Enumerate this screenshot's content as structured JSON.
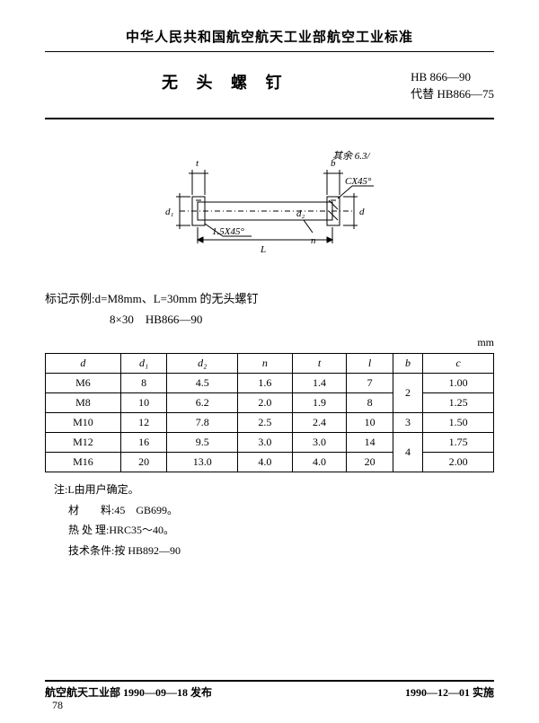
{
  "header": {
    "org": "中华人民共和国航空航天工业部航空工业标准",
    "title": "无 头 螺 钉",
    "std_code": "HB 866—90",
    "replaces_label": "代替",
    "replaces_code": "HB866—75"
  },
  "diagram": {
    "labels": {
      "t": "t",
      "b": "b",
      "d1": "d₁",
      "d2": "d₂",
      "d": "d",
      "L": "L",
      "n": "n",
      "chamfer_left": "1.5X45°",
      "chamfer_right": "CX45°",
      "surface": "其余 6.3/"
    },
    "colors": {
      "stroke": "#000000",
      "fill": "#ffffff"
    }
  },
  "example": {
    "line1": "标记示例:d=M8mm、L=30mm 的无头螺钉",
    "line2": "8×30　HB866—90"
  },
  "table": {
    "unit": "mm",
    "columns": [
      "d",
      "d₁",
      "d₂",
      "n",
      "t",
      "l",
      "b",
      "c"
    ],
    "rows": [
      [
        "M6",
        "8",
        "4.5",
        "1.6",
        "1.4",
        "7",
        {
          "rowspan": 2,
          "text": "2"
        },
        "1.00"
      ],
      [
        "M8",
        "10",
        "6.2",
        "2.0",
        "1.9",
        "8",
        null,
        "1.25"
      ],
      [
        "M10",
        "12",
        "7.8",
        "2.5",
        "2.4",
        "10",
        "3",
        "1.50"
      ],
      [
        "M12",
        "16",
        "9.5",
        "3.0",
        "3.0",
        "14",
        {
          "rowspan": 2,
          "text": "4"
        },
        "1.75"
      ],
      [
        "M16",
        "20",
        "13.0",
        "4.0",
        "4.0",
        "20",
        null,
        "2.00"
      ]
    ]
  },
  "notes": {
    "note1": "注:L由用户确定。",
    "material_label": "材　　料:",
    "material_value": "45　GB699。",
    "heat_label": "热 处 理:",
    "heat_value": "HRC35～40。",
    "tech_label": "技术条件:",
    "tech_value": "按 HB892—90"
  },
  "footer": {
    "left": "航空航天工业部 1990—09—18 发布",
    "right": "1990—12—01 实施",
    "page": "78"
  }
}
